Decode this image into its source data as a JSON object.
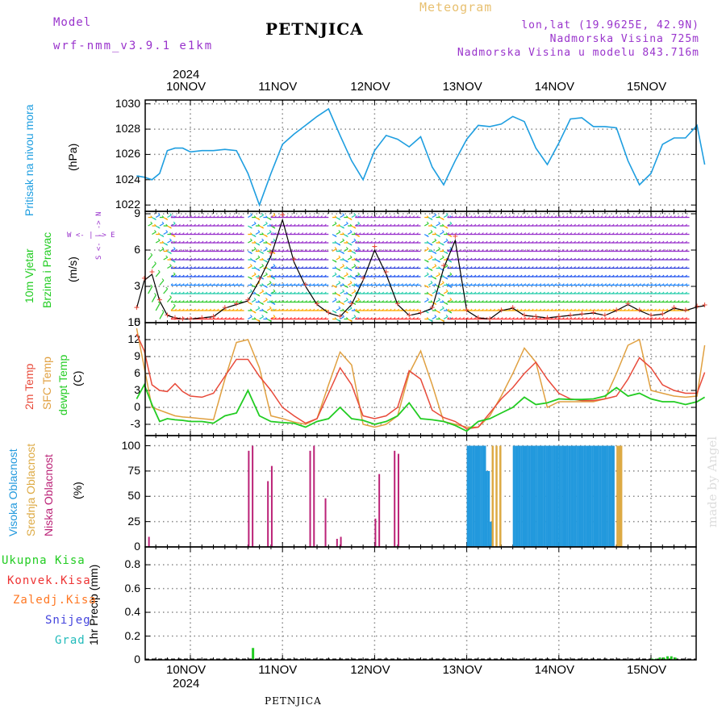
{
  "header": {
    "model_label": "Model",
    "model_name": "wrf-nmm_v3.9.1 e1km",
    "meteogram_label": "Meteogram",
    "station": "PETNJICA",
    "lonlat": "lon,lat (19.9625E, 42.9N)",
    "altitude": "Nadmorska Visina 725m",
    "model_altitude": "Nadmorska Visina u modelu 843.716m",
    "footer_station": "PETNJICA",
    "credit": "made by Angel"
  },
  "colors": {
    "pressure": "#1e9ee0",
    "temp2m": "#e84a3a",
    "sfc": "#e0a040",
    "dewpt": "#22cc22",
    "purple": "#9933cc",
    "high_cloud": "#2299dd",
    "mid_cloud": "#ddaa44",
    "low_cloud": "#bb2277",
    "total_precip": "#22cc22",
    "conv_precip": "#ee3333",
    "frozen_precip": "#ff7722",
    "snow": "#4444dd",
    "hail": "#22bbbb"
  },
  "axis": {
    "year": "2024",
    "dates": [
      "10NOV",
      "11NOV",
      "12NOV",
      "13NOV",
      "14NOV",
      "15NOV"
    ]
  },
  "panels": {
    "pressure": {
      "label": "Pritisak na nivou mora",
      "unit": "(hPa)",
      "ticks": [
        "1030",
        "1028",
        "1026",
        "1024",
        "1022"
      ]
    },
    "wind": {
      "label1": "10m Vjetar",
      "label2": "Brzina i Pravac",
      "unit": "(m/s)",
      "compass": "W <- | -> E",
      "compass_v": "S <- | -> N",
      "ticks": [
        "9",
        "6",
        "3",
        "0"
      ]
    },
    "temp": {
      "label1": "2m Temp",
      "label2": "SFC Temp",
      "label3": "dewpt Temp",
      "unit": "(C)",
      "ticks": [
        "15",
        "12",
        "9",
        "6",
        "3",
        "0",
        "-3"
      ]
    },
    "cloud": {
      "label1": "Visoka Oblacnost",
      "label2": "Srednja Oblacnost",
      "label3": "Niska Oblacnost",
      "unit": "(%)",
      "ticks": [
        "100",
        "75",
        "50",
        "25",
        "0"
      ]
    },
    "precip": {
      "unit": "1hr Precip (mm)",
      "ticks": [
        "0.8",
        "0.6",
        "0.4",
        "0.2",
        "0"
      ],
      "legend": [
        "Ukupna Kisa",
        "Konvek.Kisa",
        "Zaledj.Kisa",
        "Snijeg",
        "Grad"
      ]
    }
  },
  "chart_data": [
    {
      "type": "line",
      "ylabel": "Pritisak na nivou mora (hPa)",
      "ylim": [
        1021.5,
        1030.3
      ],
      "x_unit": "hours from 10NOV 00UTC",
      "series": [
        {
          "name": "Pritisak na nivou mora",
          "x": [
            -14,
            -12,
            -10,
            -8,
            -6,
            -4,
            -2,
            0,
            3,
            6,
            9,
            12,
            15,
            18,
            21,
            24,
            27,
            30,
            33,
            36,
            39,
            42,
            45,
            48,
            51,
            54,
            57,
            60,
            63,
            66,
            69,
            72,
            75,
            78,
            81,
            84,
            87,
            90,
            93,
            96,
            99,
            102,
            105,
            108,
            111,
            114,
            117,
            120,
            123,
            126,
            129,
            132,
            134
          ],
          "values": [
            1024.3,
            1024.2,
            1024.0,
            1024.5,
            1026.3,
            1026.5,
            1026.5,
            1026.2,
            1026.3,
            1026.3,
            1026.4,
            1026.3,
            1024.5,
            1022.0,
            1024.5,
            1026.8,
            1027.6,
            1028.3,
            1029.0,
            1029.6,
            1027.5,
            1025.5,
            1024.0,
            1026.3,
            1027.5,
            1027.2,
            1026.6,
            1027.4,
            1025.0,
            1023.6,
            1025.5,
            1027.2,
            1028.3,
            1028.2,
            1028.4,
            1029.0,
            1028.6,
            1026.5,
            1025.2,
            1026.9,
            1028.8,
            1028.9,
            1028.2,
            1028.2,
            1028.1,
            1025.5,
            1023.6,
            1024.5,
            1026.8,
            1027.3,
            1027.3,
            1028.3,
            1025.2
          ]
        }
      ]
    },
    {
      "type": "line",
      "ylabel": "10m Vjetar Brzina i Pravac (m/s)",
      "ylim": [
        0,
        9.2
      ],
      "series": [
        {
          "name": "10m Vjetar",
          "x": [
            -14,
            -12,
            -10,
            -8,
            -6,
            -4,
            -2,
            0,
            3,
            6,
            9,
            12,
            15,
            18,
            21,
            24,
            27,
            30,
            33,
            36,
            39,
            42,
            45,
            48,
            51,
            54,
            57,
            60,
            63,
            66,
            69,
            72,
            75,
            78,
            81,
            84,
            87,
            90,
            93,
            96,
            99,
            102,
            105,
            108,
            111,
            114,
            117,
            120,
            123,
            126,
            129,
            132,
            134
          ],
          "values": [
            1.2,
            3.5,
            4.0,
            1.8,
            0.6,
            0.4,
            0.3,
            0.3,
            0.4,
            0.5,
            1.2,
            1.5,
            1.8,
            3.5,
            5.5,
            8.5,
            5.0,
            3.0,
            1.5,
            0.8,
            0.5,
            1.5,
            3.5,
            6.0,
            4.0,
            1.5,
            0.6,
            0.8,
            1.2,
            4.5,
            6.8,
            1.0,
            0.4,
            0.3,
            1.0,
            1.2,
            0.6,
            0.5,
            0.4,
            0.5,
            0.6,
            0.7,
            0.8,
            0.6,
            1.0,
            1.5,
            1.0,
            0.6,
            0.7,
            1.2,
            1.0,
            1.3,
            1.4
          ]
        }
      ]
    },
    {
      "type": "line",
      "ylabel": "(C)",
      "ylim": [
        -5,
        15
      ],
      "series": [
        {
          "name": "2m Temp",
          "x": [
            -14,
            -12,
            -10,
            -8,
            -6,
            -4,
            -2,
            0,
            3,
            6,
            9,
            12,
            15,
            18,
            21,
            24,
            27,
            30,
            33,
            36,
            39,
            42,
            45,
            48,
            51,
            54,
            57,
            60,
            63,
            66,
            69,
            72,
            75,
            78,
            81,
            84,
            87,
            90,
            93,
            96,
            99,
            102,
            105,
            108,
            111,
            114,
            117,
            120,
            123,
            126,
            129,
            132,
            134
          ],
          "values": [
            13,
            10,
            4,
            3,
            2.8,
            4.2,
            2.8,
            2.0,
            1.8,
            2.5,
            5.5,
            8.5,
            8.5,
            5.5,
            3.0,
            0.0,
            -1.5,
            -2.8,
            -2.0,
            2.5,
            7.0,
            4.0,
            -1.5,
            -2.0,
            -1.5,
            0.0,
            6.5,
            5.0,
            -0.5,
            -1.8,
            -2.5,
            -3.8,
            -3.5,
            -1.0,
            1.5,
            3.5,
            6.0,
            8.0,
            5.0,
            2.5,
            1.5,
            1.2,
            1.2,
            1.5,
            2.0,
            5.0,
            8.8,
            7.0,
            4.0,
            3.0,
            2.5,
            2.5,
            6.2
          ]
        },
        {
          "name": "SFC Temp",
          "x": [
            -14,
            -12,
            -10,
            -8,
            -6,
            -4,
            -2,
            0,
            3,
            6,
            9,
            12,
            15,
            18,
            21,
            24,
            27,
            30,
            33,
            36,
            39,
            42,
            45,
            48,
            51,
            54,
            57,
            60,
            63,
            66,
            69,
            72,
            75,
            78,
            81,
            84,
            87,
            90,
            93,
            96,
            99,
            102,
            105,
            108,
            111,
            114,
            117,
            120,
            123,
            126,
            129,
            132,
            134
          ],
          "values": [
            14,
            7,
            0,
            -0.5,
            -1.0,
            -1.5,
            -1.7,
            -1.8,
            -2.0,
            -2.2,
            5.0,
            11.5,
            12.0,
            7.0,
            -1.5,
            -2.0,
            -2.6,
            -3.0,
            -2.0,
            4.0,
            9.8,
            7.5,
            -3.0,
            -3.5,
            -3.0,
            -1.5,
            6.0,
            10.0,
            4.0,
            -2.5,
            -3.0,
            -3.5,
            -3.5,
            -1.5,
            2.0,
            6.0,
            10.5,
            8.0,
            0.0,
            1.0,
            1.0,
            1.0,
            1.0,
            1.5,
            6.0,
            11.0,
            12.0,
            3.0,
            2.5,
            2.0,
            1.8,
            2.0,
            11.0
          ]
        },
        {
          "name": "dewpt Temp",
          "x": [
            -14,
            -12,
            -10,
            -8,
            -6,
            -4,
            -2,
            0,
            3,
            6,
            9,
            12,
            15,
            18,
            21,
            24,
            27,
            30,
            33,
            36,
            39,
            42,
            45,
            48,
            51,
            54,
            57,
            60,
            63,
            66,
            69,
            72,
            75,
            78,
            81,
            84,
            87,
            90,
            93,
            96,
            99,
            102,
            105,
            108,
            111,
            114,
            117,
            120,
            123,
            126,
            129,
            132,
            134
          ],
          "values": [
            1.5,
            4.0,
            0.5,
            -2.5,
            -2.0,
            -2.2,
            -2.3,
            -2.5,
            -2.5,
            -2.8,
            -1.5,
            -1.0,
            3.0,
            -1.5,
            -2.5,
            -2.7,
            -2.8,
            -3.5,
            -2.5,
            -2.0,
            0.0,
            -2.0,
            -2.3,
            -3.0,
            -2.5,
            -1.5,
            0.8,
            -2.0,
            -2.2,
            -2.5,
            -3.2,
            -4.2,
            -2.5,
            -2.0,
            -1.0,
            0.0,
            1.8,
            0.5,
            0.8,
            1.5,
            1.4,
            1.4,
            1.5,
            2.0,
            3.5,
            2.0,
            2.5,
            1.5,
            1.0,
            1.0,
            0.5,
            1.0,
            1.8
          ]
        }
      ]
    },
    {
      "type": "bar",
      "ylabel": "(%)",
      "ylim": [
        0,
        100
      ],
      "series": [
        {
          "name": "Niska Oblacnost",
          "x": [
            -11,
            15,
            16,
            20,
            21,
            31,
            32,
            35,
            38,
            39,
            48,
            49,
            53,
            54
          ],
          "values": [
            10,
            95,
            100,
            65,
            80,
            95,
            100,
            48,
            8,
            10,
            28,
            72,
            95,
            92
          ]
        },
        {
          "name": "Visoka Oblacnost",
          "x": [
            72,
            72.5,
            73,
            73.5,
            74,
            74.5,
            75,
            75.5,
            76,
            76.5,
            77,
            77.5,
            78,
            84,
            84.5,
            85,
            85.5,
            86,
            86.5,
            87,
            87.5,
            88,
            88.5,
            89,
            89.5,
            90,
            90.5,
            91,
            91.5,
            92,
            92.5,
            93,
            93.5,
            94,
            94.5,
            95,
            95.5,
            96,
            96.5,
            97,
            97.5,
            98,
            98.5,
            99,
            99.5,
            100,
            100.5,
            101,
            101.5,
            102,
            102.5,
            103,
            103.5,
            104,
            104.5,
            105,
            105.5,
            106,
            106.5,
            107,
            107.5,
            108,
            108.5,
            109,
            109.5,
            110
          ],
          "values": [
            100,
            100,
            100,
            100,
            100,
            100,
            100,
            100,
            100,
            100,
            75,
            75,
            25,
            100,
            100,
            100,
            100,
            100,
            100,
            100,
            100,
            100,
            100,
            100,
            100,
            100,
            100,
            100,
            100,
            100,
            100,
            100,
            100,
            100,
            100,
            100,
            100,
            100,
            100,
            100,
            100,
            100,
            100,
            100,
            100,
            100,
            100,
            100,
            100,
            100,
            100,
            100,
            100,
            100,
            100,
            100,
            100,
            100,
            100,
            100,
            100,
            100,
            100,
            100,
            100,
            100
          ]
        },
        {
          "name": "Srednja Oblacnost",
          "x": [
            78.5,
            79.5,
            80.5,
            111,
            111.5,
            112
          ],
          "values": [
            100,
            100,
            100,
            100,
            100,
            100
          ]
        }
      ]
    },
    {
      "type": "bar",
      "ylabel": "1hr Precip (mm)",
      "ylim": [
        0,
        0.95
      ],
      "series": [
        {
          "name": "Ukupna Kisa",
          "x": [
            16,
            120,
            121,
            122,
            123,
            124,
            125,
            126
          ],
          "values": [
            0.1,
            0.01,
            0.01,
            0.02,
            0.02,
            0.03,
            0.03,
            0.02
          ]
        }
      ]
    }
  ]
}
